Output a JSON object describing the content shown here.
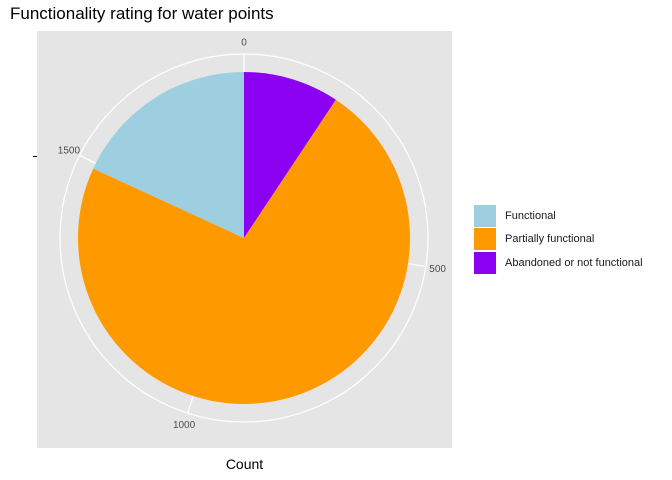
{
  "chart_data": {
    "type": "pie",
    "title": "Functionality rating for water points",
    "xlabel": "Count",
    "ylabel": "",
    "categories": [
      "Functional",
      "Partially functional",
      "Abandoned or not functional"
    ],
    "values": [
      330,
      1320,
      170
    ],
    "order_clockwise_from_top": [
      "Abandoned or not functional",
      "Partially functional",
      "Functional"
    ],
    "colors": {
      "Functional": "#9ecfe1",
      "Partially functional": "#ff9900",
      "Abandoned or not functional": "#8c00f2"
    },
    "axis_ticks": [
      {
        "value": 0,
        "label": "0"
      },
      {
        "value": 500,
        "label": "500"
      },
      {
        "value": 1000,
        "label": "1000"
      },
      {
        "value": 1500,
        "label": "1500"
      }
    ],
    "axis_max": 1820,
    "panel_background": "#e5e5e5",
    "grid": true,
    "legend_position": "right"
  }
}
